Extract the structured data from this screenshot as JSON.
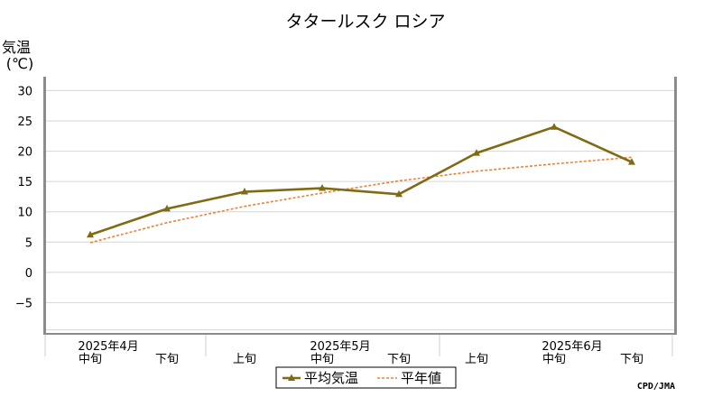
{
  "chart_data": {
    "type": "line",
    "title": "タタールスク ロシア",
    "ylabel": "気温",
    "ylabel_unit": "(℃)",
    "ylim": [
      -10,
      32
    ],
    "yticks": [
      30,
      25,
      20,
      15,
      10,
      5,
      0,
      -5
    ],
    "ytick_labels": [
      "30",
      "25",
      "20",
      "15",
      "10",
      "5",
      "0",
      "−5"
    ],
    "x": [
      "中旬",
      "下旬",
      "上旬",
      "中旬",
      "下旬",
      "上旬",
      "中旬",
      "下旬"
    ],
    "month_labels": [
      "2025年4月",
      "2025年5月",
      "2025年6月"
    ],
    "series": [
      {
        "name": "平均気温",
        "color": "#806a14",
        "style": "solid-triangle",
        "values": [
          6.2,
          10.5,
          13.3,
          13.9,
          12.9,
          19.7,
          24.0,
          18.2
        ]
      },
      {
        "name": "平年値",
        "color": "#e8843a",
        "style": "dashed",
        "values": [
          4.9,
          8.2,
          10.9,
          13.1,
          15.1,
          16.7,
          17.9,
          19.0
        ]
      }
    ],
    "grid": true,
    "legend": "bottom-center",
    "source": "CPD/JMA"
  }
}
